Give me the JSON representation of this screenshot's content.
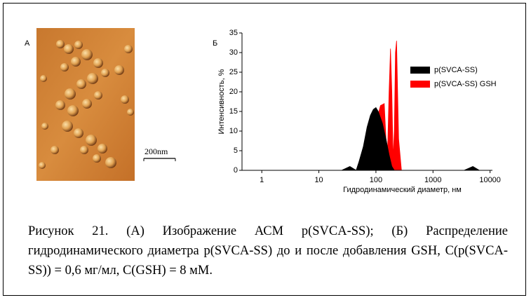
{
  "panel_a": {
    "label": "А",
    "scale_bar": "200nm"
  },
  "chart_data": {
    "type": "area",
    "label": "Б",
    "xlabel": "Гидродинамический диаметр, нм",
    "ylabel": "Интенсивность, %",
    "xscale": "log",
    "xlim": [
      0.45,
      11000
    ],
    "ylim": [
      0,
      35
    ],
    "xticks": [
      1,
      10,
      100,
      1000,
      10000
    ],
    "yticks": [
      0,
      5,
      10,
      15,
      20,
      25,
      30,
      35
    ],
    "legend": "upper right",
    "series": [
      {
        "name": "p(SVCA-SS)",
        "color": "#000000",
        "x": [
          25,
          35,
          45,
          50,
          60,
          70,
          80,
          90,
          100,
          110,
          130,
          150,
          170,
          190,
          210,
          3500,
          5000,
          6500
        ],
        "values": [
          0,
          1,
          0,
          2,
          6,
          11,
          14,
          15.5,
          16,
          15,
          12,
          8,
          4,
          1,
          0,
          0,
          1,
          0
        ]
      },
      {
        "name": "p(SVCA-SS) GSH",
        "color": "#ff0000",
        "x": [
          60,
          80,
          100,
          120,
          140,
          150,
          160,
          170,
          180,
          190,
          200,
          210,
          220,
          230,
          240,
          250,
          280
        ],
        "values": [
          0,
          5,
          12,
          16.5,
          17,
          8,
          5,
          20,
          31,
          20,
          3,
          10,
          30,
          33,
          20,
          8,
          0
        ]
      }
    ]
  },
  "caption": "Рисунок 21. (А) Изображение АСМ p(SVCA-SS); (Б) Распределение гидродинамического диаметра p(SVCA-SS) до и после добавления GSH, C(p(SVCA-SS)) = 0,6 мг/мл, C(GSH) = 8 мМ."
}
